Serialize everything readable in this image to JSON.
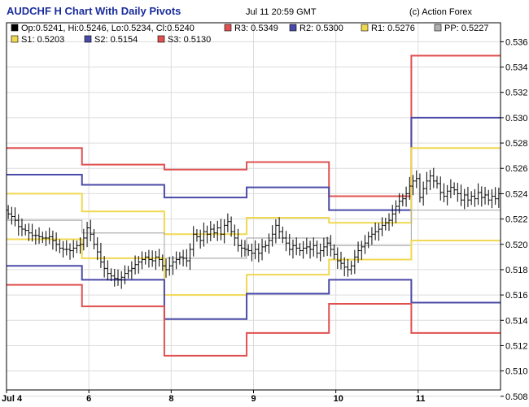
{
  "header": {
    "title": "AUDCHF H Chart With Daily Pivots",
    "timestamp": "Jul 11 20:59 GMT",
    "credit": "(c) Action Forex"
  },
  "colors": {
    "R3": "#e05050",
    "R2": "#4a4aa8",
    "R1": "#f0d850",
    "PP": "#b0b0b0",
    "S1": "#f0d850",
    "S2": "#4a4aa8",
    "S3": "#e05050",
    "grid": "#dcdcdc",
    "frame": "#000000",
    "candle": "#000000",
    "ohlc_marker": "#000000"
  },
  "chart_data": {
    "type": "line",
    "title": "AUDCHF H Chart With Daily Pivots",
    "ylim": [
      0.5085,
      0.5375
    ],
    "y_ticks": [
      "0.508",
      "0.510",
      "0.512",
      "0.514",
      "0.516",
      "0.518",
      "0.520",
      "0.522",
      "0.524",
      "0.526",
      "0.528",
      "0.530",
      "0.532",
      "0.534",
      "0.536"
    ],
    "x_ticks": [
      {
        "label": "Jul 4",
        "hour": 0
      },
      {
        "label": "6",
        "hour": 24
      },
      {
        "label": "8",
        "hour": 48
      },
      {
        "label": "9",
        "hour": 72
      },
      {
        "label": "10",
        "hour": 96
      },
      {
        "label": "11",
        "hour": 120
      }
    ],
    "x_range_hours": [
      0,
      144
    ],
    "grid": true,
    "legend_items": [
      {
        "key": "ohlc",
        "label": "Op:0.5241, Hi:0.5246, Lo:0.5234, Cl:0.5240"
      },
      {
        "key": "R3",
        "label": "R3: 0.5349"
      },
      {
        "key": "R2",
        "label": "R2: 0.5300"
      },
      {
        "key": "R1",
        "label": "R1: 0.5276"
      },
      {
        "key": "PP",
        "label": "PP: 0.5227"
      },
      {
        "key": "S1",
        "label": "S1: 0.5203"
      },
      {
        "key": "S2",
        "label": "S2: 0.5154"
      },
      {
        "key": "S3",
        "label": "S3: 0.5130"
      }
    ],
    "day_boundaries_hours": [
      0,
      22,
      46,
      70,
      94,
      118,
      144
    ],
    "pivot_levels": {
      "R3": [
        0.5276,
        0.5263,
        0.5259,
        0.5265,
        0.5238,
        0.5349
      ],
      "R2": [
        0.5255,
        0.5247,
        0.5237,
        0.5245,
        0.5227,
        0.53
      ],
      "R1": [
        0.524,
        0.5226,
        0.5208,
        0.5221,
        0.5217,
        0.5276
      ],
      "PP": [
        0.5219,
        0.5209,
        0.5189,
        0.5205,
        0.5199,
        0.5227
      ],
      "S1": [
        0.5204,
        0.5189,
        0.516,
        0.5176,
        0.5188,
        0.5203
      ],
      "S2": [
        0.5183,
        0.5172,
        0.5141,
        0.5161,
        0.5172,
        0.5154
      ],
      "S3": [
        0.5168,
        0.5151,
        0.5112,
        0.513,
        0.5153,
        0.513
      ]
    },
    "close_series": [
      0.5224,
      0.5222,
      0.5219,
      0.5214,
      0.5212,
      0.5211,
      0.5209,
      0.5207,
      0.5207,
      0.5206,
      0.5205,
      0.5205,
      0.5206,
      0.5203,
      0.52,
      0.5197,
      0.5196,
      0.5196,
      0.5195,
      0.5197,
      0.5199,
      0.52,
      0.5205,
      0.5213,
      0.5208,
      0.52,
      0.5194,
      0.5186,
      0.5181,
      0.5177,
      0.5175,
      0.5173,
      0.5172,
      0.5174,
      0.5177,
      0.5179,
      0.5181,
      0.5184,
      0.5186,
      0.5188,
      0.519,
      0.5188,
      0.5187,
      0.519,
      0.5188,
      0.5183,
      0.518,
      0.5183,
      0.5186,
      0.5188,
      0.519,
      0.5189,
      0.5187,
      0.5196,
      0.5208,
      0.5206,
      0.5203,
      0.521,
      0.5208,
      0.5212,
      0.5209,
      0.5213,
      0.5208,
      0.5215,
      0.5218,
      0.521,
      0.5205,
      0.5199,
      0.5197,
      0.5196,
      0.5195,
      0.5193,
      0.5196,
      0.5193,
      0.5198,
      0.5199,
      0.5203,
      0.5208,
      0.5215,
      0.521,
      0.5205,
      0.5201,
      0.5196,
      0.5199,
      0.5197,
      0.5195,
      0.5197,
      0.5198,
      0.5196,
      0.5199,
      0.5193,
      0.5195,
      0.5198,
      0.5201,
      0.5196,
      0.5192,
      0.5187,
      0.5185,
      0.5182,
      0.518,
      0.5183,
      0.519,
      0.5195,
      0.5198,
      0.5201,
      0.5206,
      0.5208,
      0.521,
      0.5212,
      0.5215,
      0.5217,
      0.5219,
      0.5224,
      0.523,
      0.5234,
      0.5236,
      0.524,
      0.5246,
      0.525,
      0.5252,
      0.5237,
      0.5244,
      0.525,
      0.5254,
      0.525,
      0.5248,
      0.5241,
      0.5238,
      0.5242,
      0.5245,
      0.5243,
      0.524,
      0.5235,
      0.5239,
      0.5235,
      0.5238,
      0.5236,
      0.5241,
      0.5237,
      0.5239,
      0.5235,
      0.5238,
      0.5236,
      0.524
    ]
  }
}
